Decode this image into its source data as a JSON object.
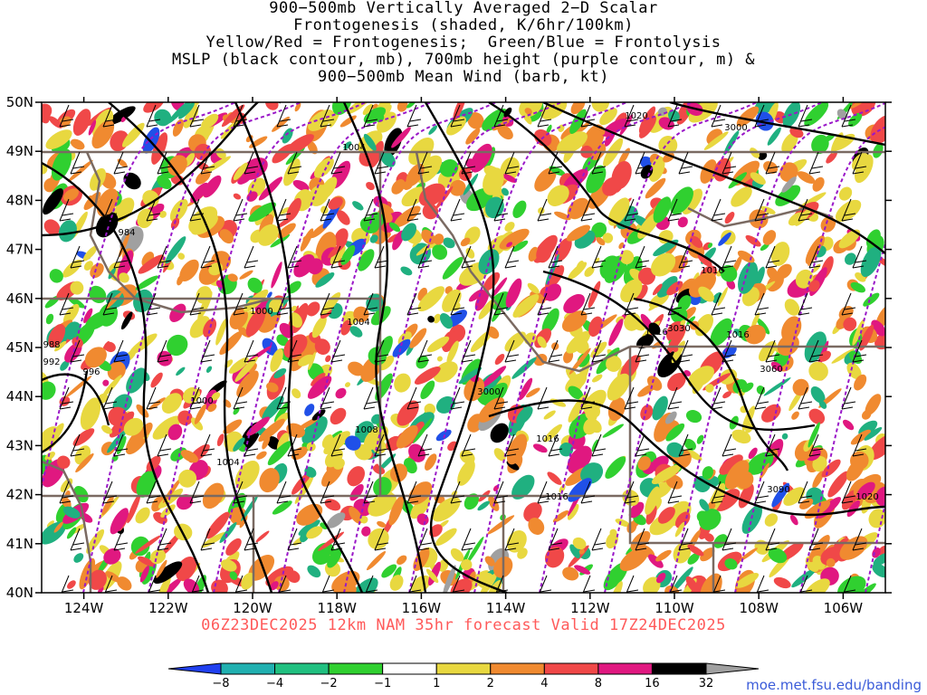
{
  "title": {
    "lines": [
      "900−500mb Vertically Averaged 2−D Scalar",
      "Frontogenesis (shaded, K/6hr/100km)",
      "Yellow/Red = Frontogenesis;  Green/Blue = Frontolysis",
      "MSLP (black contour, mb), 700mb height (purple contour, m) &",
      "900−500mb Mean Wind (barb, kt)"
    ]
  },
  "map": {
    "lon_range": [
      -125,
      -105
    ],
    "lat_range": [
      40,
      50
    ],
    "lon_ticks": [
      "124W",
      "122W",
      "120W",
      "118W",
      "116W",
      "114W",
      "112W",
      "110W",
      "108W",
      "106W"
    ],
    "lat_ticks": [
      "50N",
      "49N",
      "48N",
      "47N",
      "46N",
      "45N",
      "44N",
      "43N",
      "42N",
      "41N",
      "40N"
    ],
    "mslp_labels": [
      "1020",
      "1004",
      "1000",
      "1004",
      "1000",
      "1004",
      "1008",
      "1016",
      "1016",
      "1016",
      "1016",
      "1016",
      "1020",
      "988",
      "992",
      "996",
      "984"
    ],
    "height_labels": [
      "3000",
      "3000",
      "3030",
      "3060",
      "3090"
    ],
    "colors": {
      "frontolysis_strong": "#2050e8",
      "frontolysis_mid": "#20b080",
      "frontolysis_weak": "#30d030",
      "frontogenesis_weak": "#e8d840",
      "frontogenesis_mid": "#f08a30",
      "frontogenesis_strong": "#f04848",
      "frontogenesis_very": "#e01880",
      "extreme": "#000000",
      "beyond": "#a0a0a0",
      "mslp_contour": "#000000",
      "height_contour": "#9a18c8",
      "borders": "#7a6a62"
    }
  },
  "valid": "06Z23DEC2025 12km NAM 35hr forecast Valid 17Z24DEC2025",
  "colorbar": {
    "labels": [
      "−8",
      "−4",
      "−2",
      "−1",
      "1",
      "2",
      "4",
      "8",
      "16",
      "32"
    ],
    "colors": [
      "#2040f0",
      "#20b0b0",
      "#20c080",
      "#30d030",
      "#ffffff",
      "#e8d840",
      "#f08a30",
      "#f04848",
      "#e01880",
      "#000000",
      "#a0a0a0"
    ]
  },
  "credit": "moe.met.fsu.edu/banding"
}
